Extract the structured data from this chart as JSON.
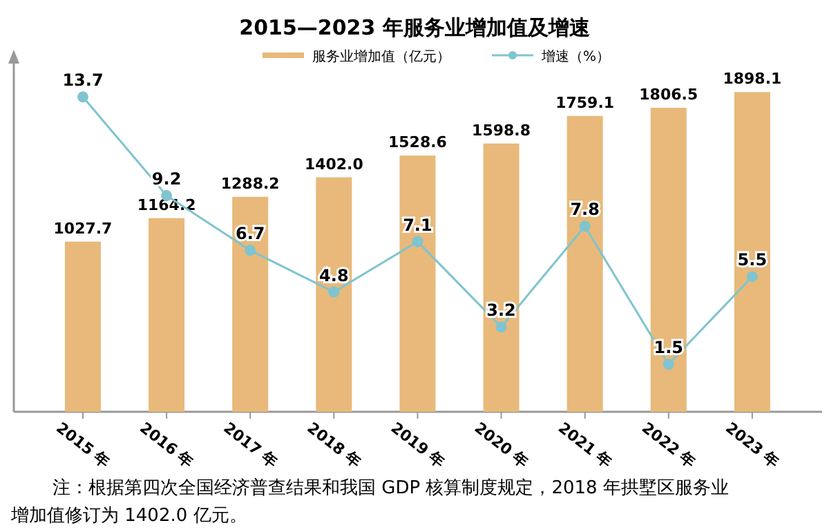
{
  "chart_data": {
    "type": "bar",
    "title": "2015—2023 年服务业增加值及增速",
    "categories": [
      "2015 年",
      "2016 年",
      "2017 年",
      "2018 年",
      "2019 年",
      "2020 年",
      "2021 年",
      "2022 年",
      "2023 年"
    ],
    "series": [
      {
        "name": "服务业增加值（亿元）",
        "color": "#e8b97a",
        "values": [
          1027.7,
          1164.2,
          1288.2,
          1402.0,
          1528.6,
          1598.8,
          1759.1,
          1806.5,
          1898.1
        ],
        "value_labels": [
          "1027.7",
          "1164.2",
          "1288.2",
          "1402.0",
          "1528.6",
          "1598.8",
          "1759.1",
          "1806.5",
          "1898.1"
        ]
      },
      {
        "name": "增速（%）",
        "type": "line",
        "axis": "y2",
        "color": "#7fc4cf",
        "marker": "circle",
        "values": [
          13.7,
          9.2,
          6.7,
          4.8,
          7.1,
          3.2,
          7.8,
          1.5,
          5.5
        ]
      }
    ],
    "data_labels": true,
    "legend": "top",
    "grid": false,
    "annotations": [
      "注：根据第四次全国经济普查结果和我国 GDP 核算制度规定，2018 年拱墅区服务业增加值修订为 1402.0 亿元。"
    ]
  }
}
